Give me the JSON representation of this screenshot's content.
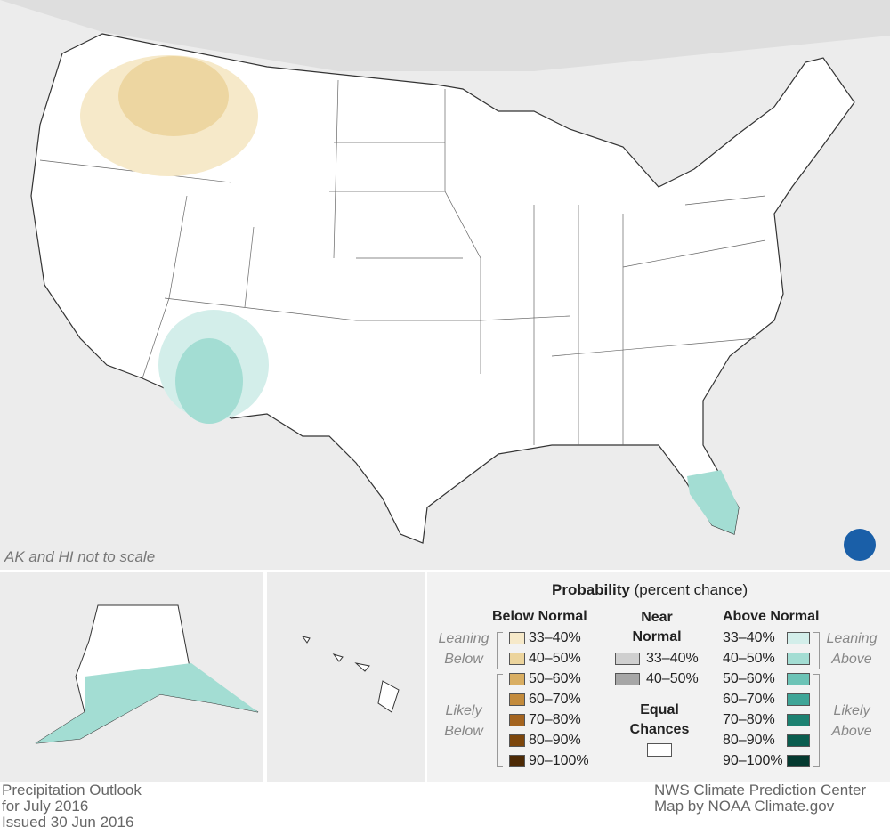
{
  "map": {
    "note": "AK and HI not to scale"
  },
  "legend": {
    "title": "Probability",
    "subtitle": "(percent chance)",
    "below": {
      "heading": "Below Normal",
      "leaning": "Leaning Below",
      "likely": "Likely Below",
      "entries": [
        {
          "label": "33–40%",
          "color": "#f6e9c9"
        },
        {
          "label": "40–50%",
          "color": "#ecd49c"
        },
        {
          "label": "50–60%",
          "color": "#d9ae62"
        },
        {
          "label": "60–70%",
          "color": "#c38b3c"
        },
        {
          "label": "70–80%",
          "color": "#a4641f"
        },
        {
          "label": "80–90%",
          "color": "#7c460c"
        },
        {
          "label": "90–100%",
          "color": "#4d2a05"
        }
      ]
    },
    "near": {
      "heading": "Near Normal",
      "entries": [
        {
          "label": "33–40%",
          "color": "#cfcfcf"
        },
        {
          "label": "40–50%",
          "color": "#a6a6a6"
        }
      ]
    },
    "equal": {
      "heading": "Equal Chances",
      "color": "#ffffff"
    },
    "above": {
      "heading": "Above Normal",
      "leaning": "Leaning Above",
      "likely": "Likely Above",
      "entries": [
        {
          "label": "33–40%",
          "color": "#d3eeea"
        },
        {
          "label": "40–50%",
          "color": "#a3ddd3"
        },
        {
          "label": "50–60%",
          "color": "#6cc3b6"
        },
        {
          "label": "60–70%",
          "color": "#3fa597"
        },
        {
          "label": "70–80%",
          "color": "#1c8171"
        },
        {
          "label": "80–90%",
          "color": "#0b5d4f"
        },
        {
          "label": "90–100%",
          "color": "#053a30"
        }
      ]
    }
  },
  "footer": {
    "left": [
      "Precipitation Outlook",
      "for July 2016",
      "Issued 30 Jun 2016"
    ],
    "right": [
      "NWS Climate Prediction Center",
      "Map by NOAA Climate.gov"
    ]
  }
}
